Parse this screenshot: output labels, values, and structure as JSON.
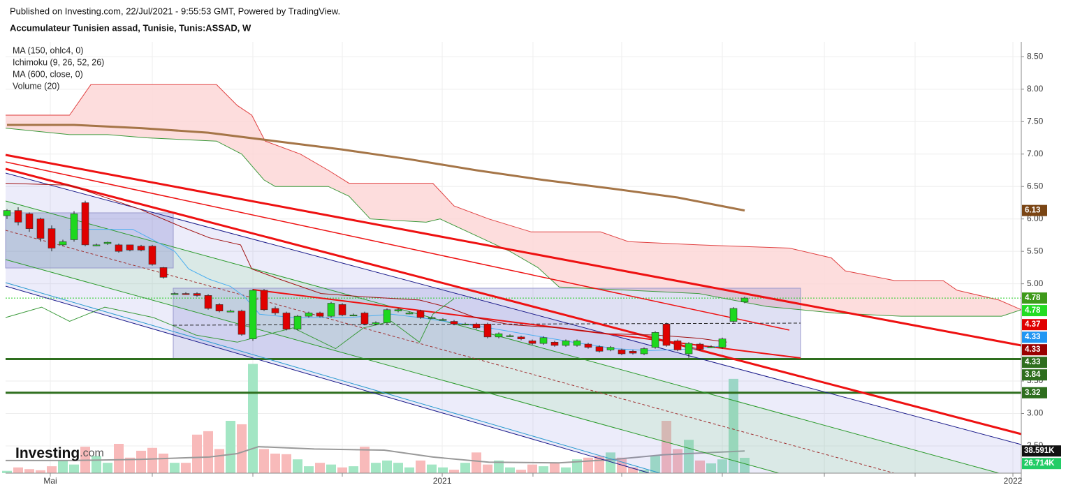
{
  "header": {
    "published": "Published on Investing.com, 22/Jul/2021 - 9:55:53 GMT, Powered by TradingView.",
    "symbol": "Accumulateur Tunisien assad, Tunisie, Tunis:ASSAD, W"
  },
  "logo": {
    "name": "Investing",
    "suffix": ".com"
  },
  "chart_data": {
    "type": "candlestick",
    "legend": [
      "MA (150, ohlc4, 0)",
      "Ichimoku (9, 26, 52, 26)",
      "MA (600, close, 0)",
      "Volume (20)"
    ],
    "xlim": [
      -0.125,
      90.75
    ],
    "ylim": [
      2.08,
      8.73
    ],
    "vlim": [
      0,
      750
    ],
    "grid": true,
    "xticks": [
      {
        "value": 3.875,
        "label": "Mai"
      },
      {
        "value": 13,
        "label": null
      },
      {
        "value": 22,
        "label": null
      },
      {
        "value": 30,
        "label": null
      },
      {
        "value": 38.94,
        "label": "2021"
      },
      {
        "value": 47.06,
        "label": null
      },
      {
        "value": 55,
        "label": null
      },
      {
        "value": 64,
        "label": null
      },
      {
        "value": 73.13,
        "label": null
      },
      {
        "value": 81.25,
        "label": null
      },
      {
        "value": 90,
        "label": "2022"
      }
    ],
    "yticks": [
      {
        "value": 8.5,
        "label": "8.50"
      },
      {
        "value": 8,
        "label": "8.00"
      },
      {
        "value": 7.5,
        "label": "7.50"
      },
      {
        "value": 7,
        "label": "7.00"
      },
      {
        "value": 6.5,
        "label": "6.50"
      },
      {
        "value": 6,
        "label": "6.00"
      },
      {
        "value": 5.5,
        "label": "5.50"
      },
      {
        "value": 5,
        "label": "5.00"
      },
      {
        "value": 3.5,
        "label": "3.50"
      },
      {
        "value": 3,
        "label": "3.00"
      },
      {
        "value": 2.5,
        "label": "2.50"
      }
    ],
    "up_color": "#1ed81e",
    "down_color": "#e00000",
    "vol_up_color": "#a3e6c4",
    "vol_down_color": "#f8baba",
    "candles": {
      "open": [
        6.05,
        6.13,
        6.08,
        6.0,
        5.85,
        5.6,
        5.68,
        6.25,
        5.6,
        5.62,
        5.6,
        5.6,
        5.58,
        5.58,
        5.25,
        4.85,
        4.85,
        4.85,
        4.82,
        4.68,
        4.58,
        4.58,
        4.15,
        4.9,
        4.62,
        4.55,
        4.3,
        4.5,
        4.55,
        4.5,
        4.68,
        4.52,
        4.55,
        4.38,
        4.4,
        4.58,
        4.55,
        4.58,
        4.48,
        4.45,
        4.42,
        4.38,
        4.38,
        4.38,
        4.18,
        4.2,
        4.18,
        4.12,
        4.08,
        4.1,
        4.05,
        4.05,
        4.07,
        4.03,
        3.98,
        3.98,
        3.96,
        3.92,
        4.02,
        4.38,
        4.12,
        3.92,
        4.07,
        4.03,
        4.02,
        4.42,
        4.72
      ],
      "high": [
        6.15,
        6.18,
        6.1,
        6.02,
        5.9,
        5.68,
        6.12,
        6.28,
        5.62,
        5.65,
        5.62,
        5.6,
        5.6,
        5.6,
        5.26,
        4.87,
        4.87,
        4.87,
        4.84,
        4.7,
        4.6,
        4.6,
        4.92,
        4.92,
        4.65,
        4.57,
        4.52,
        4.57,
        4.57,
        4.72,
        4.7,
        4.54,
        4.57,
        4.42,
        4.62,
        4.62,
        4.57,
        4.6,
        4.5,
        4.47,
        4.44,
        4.4,
        4.4,
        4.4,
        4.25,
        4.22,
        4.2,
        4.14,
        4.19,
        4.12,
        4.14,
        4.14,
        4.09,
        4.05,
        4.04,
        4.0,
        3.98,
        4.02,
        4.27,
        4.4,
        4.14,
        4.1,
        4.09,
        4.05,
        4.17,
        4.64,
        4.8
      ],
      "low": [
        6.0,
        5.9,
        5.8,
        5.65,
        5.5,
        5.58,
        5.65,
        5.58,
        5.58,
        5.6,
        5.48,
        5.5,
        5.5,
        5.28,
        5.08,
        4.83,
        4.83,
        4.8,
        4.6,
        4.56,
        4.56,
        4.2,
        4.12,
        4.58,
        4.52,
        4.28,
        4.28,
        4.48,
        4.48,
        4.48,
        4.5,
        4.5,
        4.36,
        4.36,
        4.38,
        4.56,
        4.53,
        4.46,
        4.46,
        4.43,
        4.36,
        4.36,
        4.3,
        4.16,
        4.16,
        4.18,
        4.13,
        4.06,
        4.06,
        4.03,
        4.03,
        4.03,
        4.0,
        3.94,
        3.96,
        3.9,
        3.91,
        3.9,
        4.0,
        4.03,
        3.96,
        3.86,
        3.97,
        4.01,
        4.0,
        4.4,
        4.7
      ],
      "close": [
        6.13,
        5.95,
        5.85,
        5.7,
        5.55,
        5.65,
        6.08,
        5.6,
        5.6,
        5.64,
        5.5,
        5.52,
        5.52,
        5.3,
        5.1,
        4.85,
        4.84,
        4.82,
        4.62,
        4.58,
        4.58,
        4.22,
        4.9,
        4.6,
        4.55,
        4.3,
        4.5,
        4.55,
        4.5,
        4.7,
        4.52,
        4.52,
        4.38,
        4.4,
        4.6,
        4.6,
        4.55,
        4.48,
        4.48,
        4.45,
        4.38,
        4.38,
        4.32,
        4.18,
        4.23,
        4.2,
        4.15,
        4.08,
        4.17,
        4.05,
        4.12,
        4.12,
        4.02,
        3.96,
        4.02,
        3.92,
        3.93,
        4.0,
        4.25,
        4.05,
        3.98,
        4.08,
        3.99,
        4.03,
        4.15,
        4.62,
        4.78
      ]
    },
    "volume": [
      4,
      10,
      7,
      5,
      12,
      22,
      15,
      46,
      30,
      18,
      51,
      27,
      39,
      44,
      34,
      18,
      18,
      67,
      73,
      42,
      91,
      85,
      190,
      42,
      34,
      33,
      24,
      12,
      18,
      15,
      10,
      12,
      46,
      18,
      22,
      18,
      10,
      22,
      15,
      10,
      6,
      18,
      36,
      15,
      22,
      10,
      6,
      15,
      12,
      17,
      10,
      24,
      27,
      30,
      36,
      27,
      10,
      6,
      30,
      91,
      42,
      58,
      22,
      17,
      24,
      164,
      26.714
    ],
    "lines": [
      {
        "name": "MA 150",
        "color": "#a57547",
        "width": 3,
        "x": [
          0,
          6,
          12,
          18,
          24,
          30,
          36,
          42,
          48,
          54,
          60,
          66
        ],
        "values": [
          7.45,
          7.45,
          7.4,
          7.33,
          7.2,
          7.07,
          6.92,
          6.75,
          6.6,
          6.47,
          6.33,
          6.13
        ]
      },
      {
        "name": "Tenkan",
        "color": "#4aaef0",
        "width": 1,
        "x": [
          5.6,
          11.25,
          12.8,
          15,
          16.25,
          18.1,
          20,
          21.25,
          22.6,
          25.6,
          30.6,
          34.4,
          36.9,
          40,
          43.1,
          46.9,
          50.6,
          54.4,
          57.5,
          61.9,
          64.4
        ],
        "values": [
          5.84,
          5.84,
          5.7,
          5.5,
          5.23,
          5.07,
          4.96,
          4.8,
          4.53,
          4.48,
          4.48,
          4.53,
          4.48,
          4.4,
          4.32,
          4.21,
          4.1,
          4.0,
          3.97,
          4.0,
          4.05
        ]
      },
      {
        "name": "Kijun",
        "color": "#a01010",
        "width": 1,
        "x": [
          -0.125,
          5.6,
          11.9,
          15.6,
          18.1,
          20.9,
          21.9,
          24.4,
          28.1,
          31.9,
          36.9,
          39.4,
          41.9,
          45,
          49.4,
          53.75,
          58.1,
          61.9,
          64.4
        ],
        "values": [
          6.55,
          6.52,
          6.15,
          5.88,
          5.71,
          5.6,
          5.23,
          5.07,
          4.85,
          4.8,
          4.75,
          4.64,
          4.48,
          4.37,
          4.32,
          4.23,
          4.21,
          4.16,
          4.1
        ]
      },
      {
        "name": "Chikou",
        "color": "#3a9a3a",
        "width": 1,
        "x": [
          -0.125,
          3.1,
          5.6,
          8.75,
          13.1,
          16.9,
          20.6,
          23.1,
          25.6,
          29.4,
          31.9,
          34.4,
          36.9,
          38.1,
          40
        ],
        "values": [
          4.48,
          4.64,
          4.42,
          4.64,
          4.48,
          4.21,
          4.1,
          4.21,
          4.32,
          4.0,
          4.32,
          4.42,
          4.1,
          4.53,
          4.77
        ]
      }
    ],
    "cloud": {
      "fill": "#fcd5d5",
      "upper": {
        "color": "#e04040",
        "x": [
          -0.125,
          5.6,
          7.5,
          18.75,
          20.6,
          21.9,
          23.1,
          26.25,
          28.75,
          30.6,
          38.1,
          40,
          43.1,
          46.9,
          53.1,
          55.6,
          61.9,
          70,
          73.75,
          75,
          79.4,
          83.75,
          85,
          88.75,
          90.75
        ],
        "values": [
          7.6,
          7.6,
          8.07,
          8.07,
          7.75,
          7.6,
          7.2,
          7.0,
          6.75,
          6.55,
          6.55,
          6.2,
          6.0,
          5.8,
          5.8,
          5.65,
          5.6,
          5.55,
          5.4,
          5.2,
          5.05,
          5.05,
          4.9,
          4.75,
          4.6
        ]
      },
      "lower": {
        "color": "#3c9a3c",
        "x": [
          -0.125,
          5.6,
          9,
          12.5,
          18.75,
          21,
          23,
          24,
          28.75,
          30.6,
          32.5,
          37.5,
          38.75,
          42.5,
          45,
          47.5,
          49.4,
          55.6,
          61.9,
          68,
          74,
          80,
          89,
          90.75
        ],
        "values": [
          7.4,
          7.3,
          7.3,
          7.25,
          7.2,
          7.0,
          6.6,
          6.5,
          6.5,
          6.35,
          6.0,
          5.95,
          6.0,
          5.7,
          5.5,
          5.25,
          4.95,
          4.9,
          4.85,
          4.65,
          4.55,
          4.5,
          4.5,
          4.6
        ]
      }
    },
    "volume_ma": {
      "color": "#999999",
      "x": [
        -0.125,
        5.6,
        11.9,
        18.1,
        20.6,
        22.5,
        27.5,
        33.75,
        38.1,
        43.1,
        49.4,
        54.4,
        58.75,
        66
      ],
      "values": [
        22,
        22,
        24,
        28,
        34,
        46,
        42,
        40,
        28,
        19,
        18,
        24,
        32,
        38.591
      ]
    },
    "levels": [
      {
        "value": 4.78,
        "color": "#22cc22",
        "style": "dotted"
      },
      {
        "value": 3.84,
        "color": "#2e6e1e",
        "style": "solid"
      },
      {
        "value": 3.32,
        "color": "#2e6e1e",
        "style": "solid"
      }
    ],
    "price_labels": [
      {
        "value": 6.13,
        "color": "#7a4514"
      },
      {
        "value": 4.78,
        "color": "#3e9a1a"
      },
      {
        "value": 4.78,
        "color": "#22dd22"
      },
      {
        "value": 4.37,
        "color": "#e00000"
      },
      {
        "value": 4.33,
        "color": "#2196f3"
      },
      {
        "value": 4.33,
        "color": "#990000"
      },
      {
        "value": 4.33,
        "color": "#2e6e1e"
      },
      {
        "value": 3.84,
        "color": "#2e6e1e"
      },
      {
        "value": 3.32,
        "color": "#2e6e1e"
      }
    ],
    "volume_labels": [
      {
        "value": 38.591,
        "label": "38.591K",
        "color": "#111111"
      },
      {
        "value": 26.714,
        "label": "26.714K",
        "color": "#22cc66"
      }
    ]
  }
}
